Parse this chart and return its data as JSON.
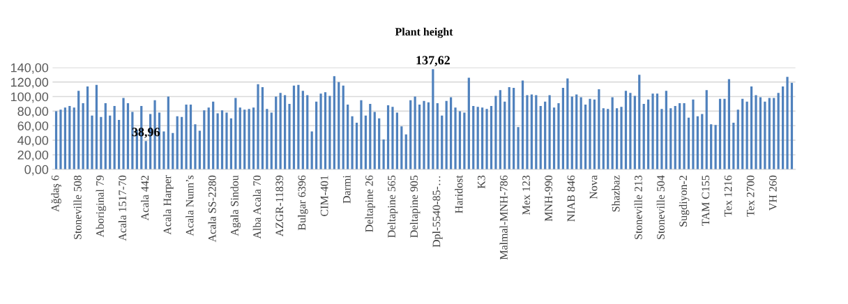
{
  "chart_data": {
    "type": "bar",
    "title": "Plant height",
    "categories": [
      "Ağdaş 6",
      null,
      null,
      null,
      null,
      "Stoneville 508",
      null,
      null,
      null,
      null,
      "Aboriginal 79",
      null,
      null,
      null,
      null,
      "Acala 1517-70",
      null,
      null,
      null,
      null,
      "Acala 442",
      null,
      null,
      null,
      null,
      "Acala Harper",
      null,
      null,
      null,
      null,
      "Acala Nunn’s",
      null,
      null,
      null,
      null,
      "Acala SS-2280",
      null,
      null,
      null,
      null,
      "Agala Sindou",
      null,
      null,
      null,
      null,
      "Alba Acala 70",
      null,
      null,
      null,
      null,
      "AZGR-11839",
      null,
      null,
      null,
      null,
      "Bulgar 6396",
      null,
      null,
      null,
      null,
      "CIM-401",
      null,
      null,
      null,
      null,
      "Darmi",
      null,
      null,
      null,
      null,
      "Deltapine 26",
      null,
      null,
      null,
      null,
      "Deltapine 565",
      null,
      null,
      null,
      null,
      "Deltapine 905",
      null,
      null,
      null,
      null,
      "Dpl-5540-85-…",
      null,
      null,
      null,
      null,
      "Haridost",
      null,
      null,
      null,
      null,
      "K3",
      null,
      null,
      null,
      null,
      "Malmal-MNH-786",
      null,
      null,
      null,
      null,
      "Mex 123",
      null,
      null,
      null,
      null,
      "MNH-990",
      null,
      null,
      null,
      null,
      "NIAB 846",
      null,
      null,
      null,
      null,
      "Nova",
      null,
      null,
      null,
      null,
      "Shazbaz",
      null,
      null,
      null,
      null,
      "Stoneville 213",
      null,
      null,
      null,
      null,
      "Stoneville 504",
      null,
      null,
      null,
      null,
      "Sugdiyon-2",
      null,
      null,
      null,
      null,
      "TAM C155",
      null,
      null,
      null,
      null,
      "Tex 1216",
      null,
      null,
      null,
      null,
      "Tex 2700",
      null,
      null,
      null,
      null,
      "VH 260",
      null,
      null,
      null,
      null
    ],
    "values": [
      80,
      82,
      85,
      87,
      85,
      108,
      91,
      114,
      74,
      116,
      72,
      91,
      74,
      87,
      68,
      98,
      91,
      79,
      54,
      87,
      38.96,
      76,
      95,
      78,
      52,
      100,
      50,
      73,
      72,
      89,
      89,
      62,
      53,
      81,
      85,
      93,
      77,
      81,
      78,
      70,
      98,
      85,
      82,
      83,
      85,
      117,
      113,
      83,
      78,
      100,
      105,
      102,
      90,
      115,
      116,
      108,
      102,
      52,
      93,
      104,
      106,
      101,
      128,
      120,
      115,
      89,
      73,
      64,
      95,
      74,
      90,
      79,
      70,
      41,
      88,
      86,
      78,
      59,
      48,
      95,
      100,
      89,
      94,
      92,
      137.62,
      91,
      74,
      94,
      99,
      85,
      80,
      78,
      126,
      87,
      86,
      85,
      83,
      87,
      101,
      109,
      93,
      113,
      112,
      58,
      122,
      102,
      103,
      102,
      87,
      93,
      102,
      85,
      91,
      112,
      125,
      100,
      103,
      99,
      89,
      97,
      96,
      110,
      84,
      83,
      99,
      84,
      86,
      108,
      105,
      101,
      130,
      90,
      96,
      104,
      104,
      83,
      108,
      84,
      87,
      91,
      91,
      71,
      96,
      73,
      76,
      109,
      62,
      61,
      97,
      97,
      124,
      64,
      82,
      97,
      93,
      114,
      102,
      99,
      93,
      98,
      98,
      105,
      114,
      127,
      119
    ],
    "value_labels": [
      null,
      null,
      null,
      null,
      null,
      null,
      null,
      null,
      null,
      null,
      null,
      null,
      null,
      null,
      null,
      null,
      null,
      null,
      null,
      null,
      "38,96",
      null,
      null,
      null,
      null,
      null,
      null,
      null,
      null,
      null,
      null,
      null,
      null,
      null,
      null,
      null,
      null,
      null,
      null,
      null,
      null,
      null,
      null,
      null,
      null,
      null,
      null,
      null,
      null,
      null,
      null,
      null,
      null,
      null,
      null,
      null,
      null,
      null,
      null,
      null,
      null,
      null,
      null,
      null,
      null,
      null,
      null,
      null,
      null,
      null,
      null,
      null,
      null,
      null,
      null,
      null,
      null,
      null,
      null,
      null,
      null,
      null,
      null,
      null,
      "137,62",
      null,
      null,
      null,
      null,
      null,
      null,
      null,
      null,
      null,
      null,
      null,
      null,
      null,
      null,
      null,
      null,
      null,
      null,
      null,
      null,
      null,
      null,
      null,
      null,
      null,
      null,
      null,
      null,
      null,
      null,
      null,
      null,
      null,
      null,
      null,
      null,
      null,
      null,
      null,
      null,
      null,
      null,
      null,
      null,
      null,
      null,
      null,
      null,
      null,
      null,
      null,
      null,
      null,
      null,
      null,
      null,
      null,
      null,
      null,
      null,
      null,
      null,
      null,
      null,
      null,
      null,
      null,
      null,
      null,
      null,
      null,
      null,
      null,
      null,
      null,
      null,
      null,
      null,
      null,
      null
    ],
    "color": "#4f81bd",
    "ylim": [
      0,
      140
    ],
    "yticks": [
      {
        "value": 0,
        "label": "0,00"
      },
      {
        "value": 20,
        "label": "20,00"
      },
      {
        "value": 40,
        "label": "40,00"
      },
      {
        "value": 60,
        "label": "60,00"
      },
      {
        "value": 80,
        "label": "80,00"
      },
      {
        "value": 100,
        "label": "100,00"
      },
      {
        "value": 120,
        "label": "120,00"
      },
      {
        "value": 140,
        "label": "140,00"
      }
    ],
    "grid": "y"
  }
}
